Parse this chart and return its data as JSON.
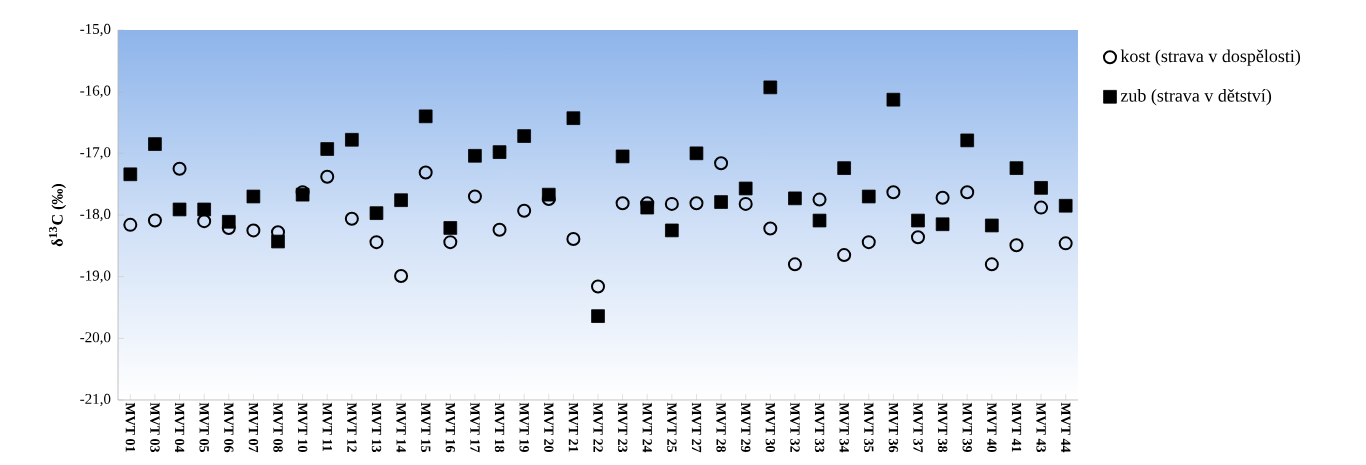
{
  "chart_data": {
    "type": "scatter",
    "ylabel": "δ$^{13}$C (‰)",
    "categories": [
      "MVT 01",
      "MVT 03",
      "MVT 04",
      "MVT 05",
      "MVT 06",
      "MVT 07",
      "MVT 08",
      "MVT 10",
      "MVT 11",
      "MVT 12",
      "MVT 13",
      "MVT 14",
      "MVT 15",
      "MVT 16",
      "MVT 17",
      "MVT 18",
      "MVT 19",
      "MVT 20",
      "MVT 21",
      "MVT 22",
      "MVT 23",
      "MVT 24",
      "MVT 25",
      "MVT 27",
      "MVT 28",
      "MVT 29",
      "MVT 30",
      "MVT 32",
      "MVT 33",
      "MVT 34",
      "MVT 35",
      "MVT 36",
      "MVT 37",
      "MVT 38",
      "MVT 39",
      "MVT 40",
      "MVT 41",
      "MVT 43",
      "MVT 44"
    ],
    "series": [
      {
        "name": "kost (strava v dospělosti)",
        "color": "#000000",
        "marker": "circle",
        "values": [
          -18.16,
          -18.09,
          -17.25,
          -18.1,
          -18.21,
          -18.25,
          -18.28,
          -17.63,
          -17.38,
          -18.06,
          -18.44,
          -18.99,
          -17.31,
          -18.44,
          -17.7,
          -18.24,
          -17.93,
          -17.74,
          -18.39,
          -19.16,
          -17.81,
          -17.81,
          -17.82,
          -17.81,
          -17.16,
          -17.82,
          -18.22,
          -18.8,
          -17.75,
          -18.65,
          -18.44,
          -17.63,
          -18.36,
          -17.72,
          -17.63,
          -18.8,
          -18.49,
          -17.88,
          -18.46
        ]
      },
      {
        "name": "zub (strava v dětství)",
        "color": "#000000",
        "marker": "square",
        "values": [
          -17.34,
          -16.85,
          -17.91,
          -17.91,
          -18.11,
          -17.7,
          -18.43,
          -17.67,
          -16.93,
          -16.78,
          -17.97,
          -17.76,
          -16.4,
          -18.21,
          -17.04,
          -16.98,
          -16.72,
          -17.67,
          -16.43,
          -19.64,
          -17.05,
          -17.88,
          -18.25,
          -17.0,
          -17.79,
          -17.57,
          -15.93,
          -17.73,
          -18.09,
          -17.24,
          -17.7,
          -16.13,
          -18.09,
          -18.15,
          -16.79,
          -18.17,
          -17.24,
          -17.56,
          -17.85
        ]
      }
    ],
    "ylim": [
      -21,
      -15
    ],
    "yticks": [
      {
        "value": -21,
        "label": "-21,0"
      },
      {
        "value": -20,
        "label": "-20,0"
      },
      {
        "value": -19,
        "label": "-19,0"
      },
      {
        "value": -18,
        "label": "-18,0"
      },
      {
        "value": -17,
        "label": "-17,0"
      },
      {
        "value": -16,
        "label": "-16,0"
      },
      {
        "value": -15,
        "label": "-15,0"
      }
    ],
    "grid": false,
    "legend": "top right"
  }
}
